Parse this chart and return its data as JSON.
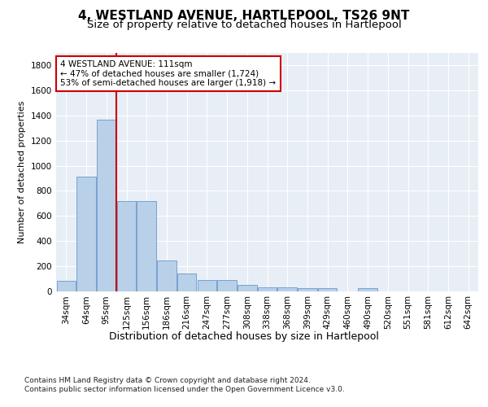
{
  "title": "4, WESTLAND AVENUE, HARTLEPOOL, TS26 9NT",
  "subtitle": "Size of property relative to detached houses in Hartlepool",
  "xlabel": "Distribution of detached houses by size in Hartlepool",
  "ylabel": "Number of detached properties",
  "categories": [
    "34sqm",
    "64sqm",
    "95sqm",
    "125sqm",
    "156sqm",
    "186sqm",
    "216sqm",
    "247sqm",
    "277sqm",
    "308sqm",
    "338sqm",
    "368sqm",
    "399sqm",
    "429sqm",
    "460sqm",
    "490sqm",
    "520sqm",
    "551sqm",
    "581sqm",
    "612sqm",
    "642sqm"
  ],
  "values": [
    80,
    910,
    1370,
    715,
    715,
    245,
    140,
    85,
    85,
    50,
    30,
    30,
    20,
    20,
    0,
    20,
    0,
    0,
    0,
    0,
    0
  ],
  "bar_color": "#b8d0e8",
  "bar_edge_color": "#6699cc",
  "vline_x": 2.5,
  "vline_color": "#cc0000",
  "annotation_text": "4 WESTLAND AVENUE: 111sqm\n← 47% of detached houses are smaller (1,724)\n53% of semi-detached houses are larger (1,918) →",
  "annotation_box_color": "#ffffff",
  "annotation_box_edge": "#cc0000",
  "ylim": [
    0,
    1900
  ],
  "yticks": [
    0,
    200,
    400,
    600,
    800,
    1000,
    1200,
    1400,
    1600,
    1800
  ],
  "background_color": "#ffffff",
  "plot_bg_color": "#e8eef5",
  "grid_color": "#ffffff",
  "footer_line1": "Contains HM Land Registry data © Crown copyright and database right 2024.",
  "footer_line2": "Contains public sector information licensed under the Open Government Licence v3.0.",
  "title_fontsize": 11,
  "subtitle_fontsize": 9.5,
  "xlabel_fontsize": 9,
  "ylabel_fontsize": 8,
  "tick_fontsize": 7.5,
  "footer_fontsize": 6.5
}
